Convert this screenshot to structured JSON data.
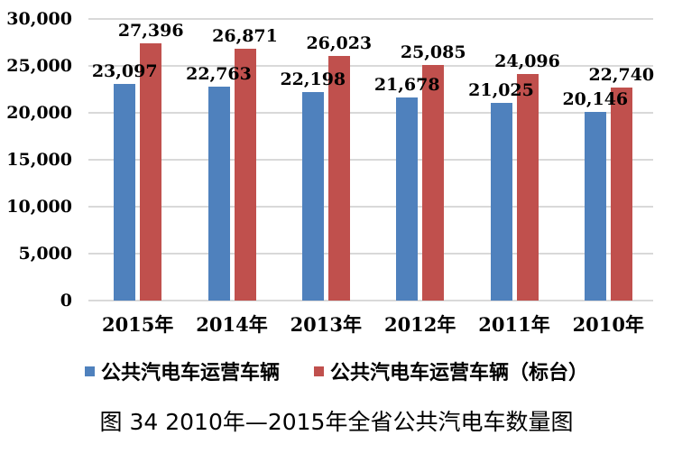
{
  "chart_data": {
    "type": "bar",
    "categories": [
      "2015年",
      "2014年",
      "2013年",
      "2012年",
      "2011年",
      "2010年"
    ],
    "series": [
      {
        "name": "公共汽电车运营车辆",
        "color": "#4F81BD",
        "values": [
          23097,
          22763,
          22198,
          21678,
          21025,
          20146
        ],
        "data_labels": [
          "23,097",
          "22,763",
          "22,198",
          "21,678",
          "21,025",
          "20,146"
        ]
      },
      {
        "name": "公共汽电车运营车辆（标台）",
        "color": "#C0504D",
        "values": [
          27396,
          26871,
          26023,
          25085,
          24096,
          22740
        ],
        "data_labels": [
          "27,396",
          "26,871",
          "26,023",
          "25,085",
          "24,096",
          "22,740"
        ]
      }
    ],
    "xlabel": "",
    "ylabel": "",
    "ylim": [
      0,
      30000
    ],
    "ytick_step": 5000,
    "ytick_labels": [
      "0",
      "5,000",
      "10,000",
      "15,000",
      "20,000",
      "25,000",
      "30,000"
    ],
    "grid": true,
    "gridline_color": "#D9D9D9",
    "legend_position": "bottom",
    "title": "图 34  2010年—2015年全省公共汽电车数量图"
  },
  "figure": {
    "caption": "图 34  2010年—2015年全省公共汽电车数量图"
  }
}
